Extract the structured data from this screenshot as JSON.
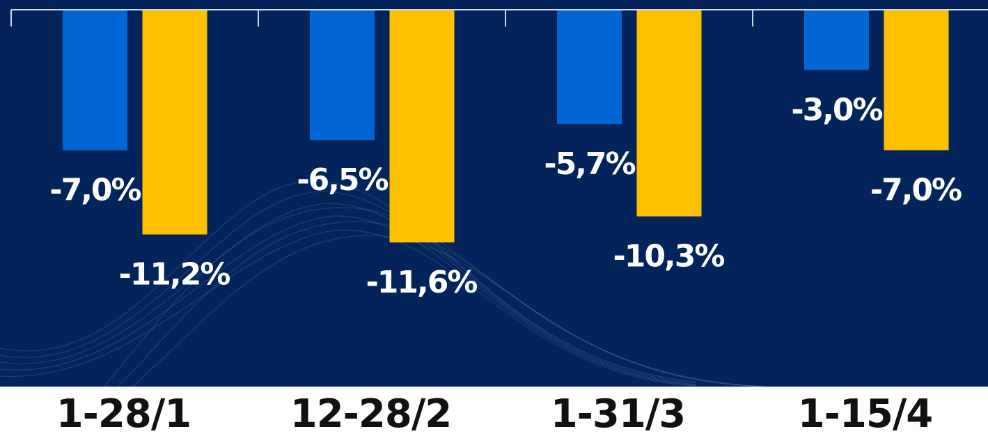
{
  "chart_data": {
    "type": "bar",
    "categories": [
      "1-28/1",
      "12-28/2",
      "1-31/3",
      "1-15/4"
    ],
    "series": [
      {
        "color": "#0066d4",
        "values": [
          -7.0,
          -6.5,
          -5.7,
          -3.0
        ],
        "value_labels": [
          "-7,0%",
          "-6,5%",
          "-5,7%",
          "-3,0%"
        ]
      },
      {
        "color": "#ffc000",
        "values": [
          -11.2,
          -11.6,
          -10.3,
          -7.0
        ],
        "value_labels": [
          "-11,2%",
          "-11,6%",
          "-10,3%",
          "-7,0%"
        ]
      }
    ],
    "ylim": [
      -18,
      0
    ]
  }
}
